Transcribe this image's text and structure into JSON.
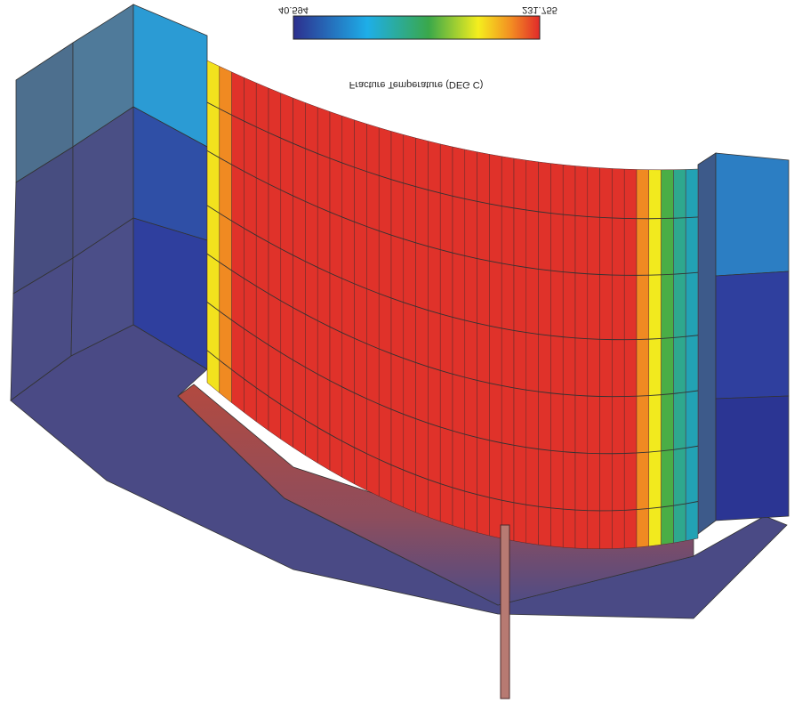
{
  "colorbar": {
    "min_label": "40.594",
    "max_label": "231.755",
    "title": "Fracture Temperature (DEG C)"
  }
}
